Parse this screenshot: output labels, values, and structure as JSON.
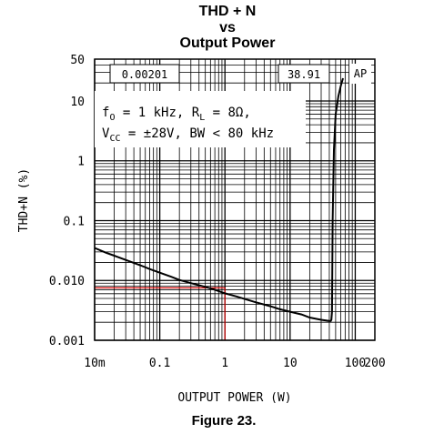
{
  "chart_data": {
    "type": "line",
    "title_lines": [
      "THD + N",
      "vs",
      "Output Power"
    ],
    "xlabel": "OUTPUT POWER (W)",
    "ylabel": "THD+N (%)",
    "x_scale": "log",
    "y_scale": "log",
    "xlim": [
      0.01,
      200
    ],
    "ylim": [
      0.001,
      50
    ],
    "x_ticks": [
      {
        "value": 0.01,
        "label": "10m"
      },
      {
        "value": 0.1,
        "label": "0.1"
      },
      {
        "value": 1,
        "label": "1"
      },
      {
        "value": 10,
        "label": "10"
      },
      {
        "value": 100,
        "label": "100"
      },
      {
        "value": 200,
        "label": "200"
      }
    ],
    "y_ticks": [
      {
        "value": 0.001,
        "label": "0.001"
      },
      {
        "value": 0.01,
        "label": "0.010"
      },
      {
        "value": 0.1,
        "label": "0.1"
      },
      {
        "value": 1,
        "label": "1"
      },
      {
        "value": 10,
        "label": "10"
      },
      {
        "value": 50,
        "label": "50"
      }
    ],
    "grid": true,
    "series": [
      {
        "color": "#000000",
        "x": [
          0.01,
          0.015,
          0.02,
          0.03,
          0.05,
          0.07,
          0.1,
          0.15,
          0.2,
          0.3,
          0.5,
          0.7,
          1,
          1.5,
          2,
          3,
          5,
          7,
          10,
          15,
          20,
          30,
          40,
          42,
          43,
          44,
          45,
          47,
          50,
          55,
          60,
          65
        ],
        "y": [
          0.035,
          0.029,
          0.026,
          0.022,
          0.018,
          0.0155,
          0.0135,
          0.0115,
          0.0102,
          0.009,
          0.0078,
          0.007,
          0.0061,
          0.0054,
          0.0049,
          0.0043,
          0.0037,
          0.0033,
          0.003,
          0.0027,
          0.0024,
          0.0022,
          0.0021,
          0.0021,
          0.0022,
          0.003,
          0.1,
          1.5,
          6,
          12,
          18,
          24
        ]
      }
    ],
    "marker": {
      "x": 1,
      "y": 0.00753,
      "color": "#cc0000"
    },
    "readout": {
      "x_text": "0.00201",
      "y_text": "38.91",
      "ap_label": "AP"
    },
    "conditions": {
      "line1": {
        "f": "f",
        "f_sub": "O",
        "mid": " = 1 kHz, R",
        "r_sub": "L",
        "end": " = 8Ω,"
      },
      "line2": {
        "v": "V",
        "v_sub": "CC",
        "end": " = ±28V, BW < 80 kHz"
      }
    }
  },
  "caption": "Figure 23."
}
